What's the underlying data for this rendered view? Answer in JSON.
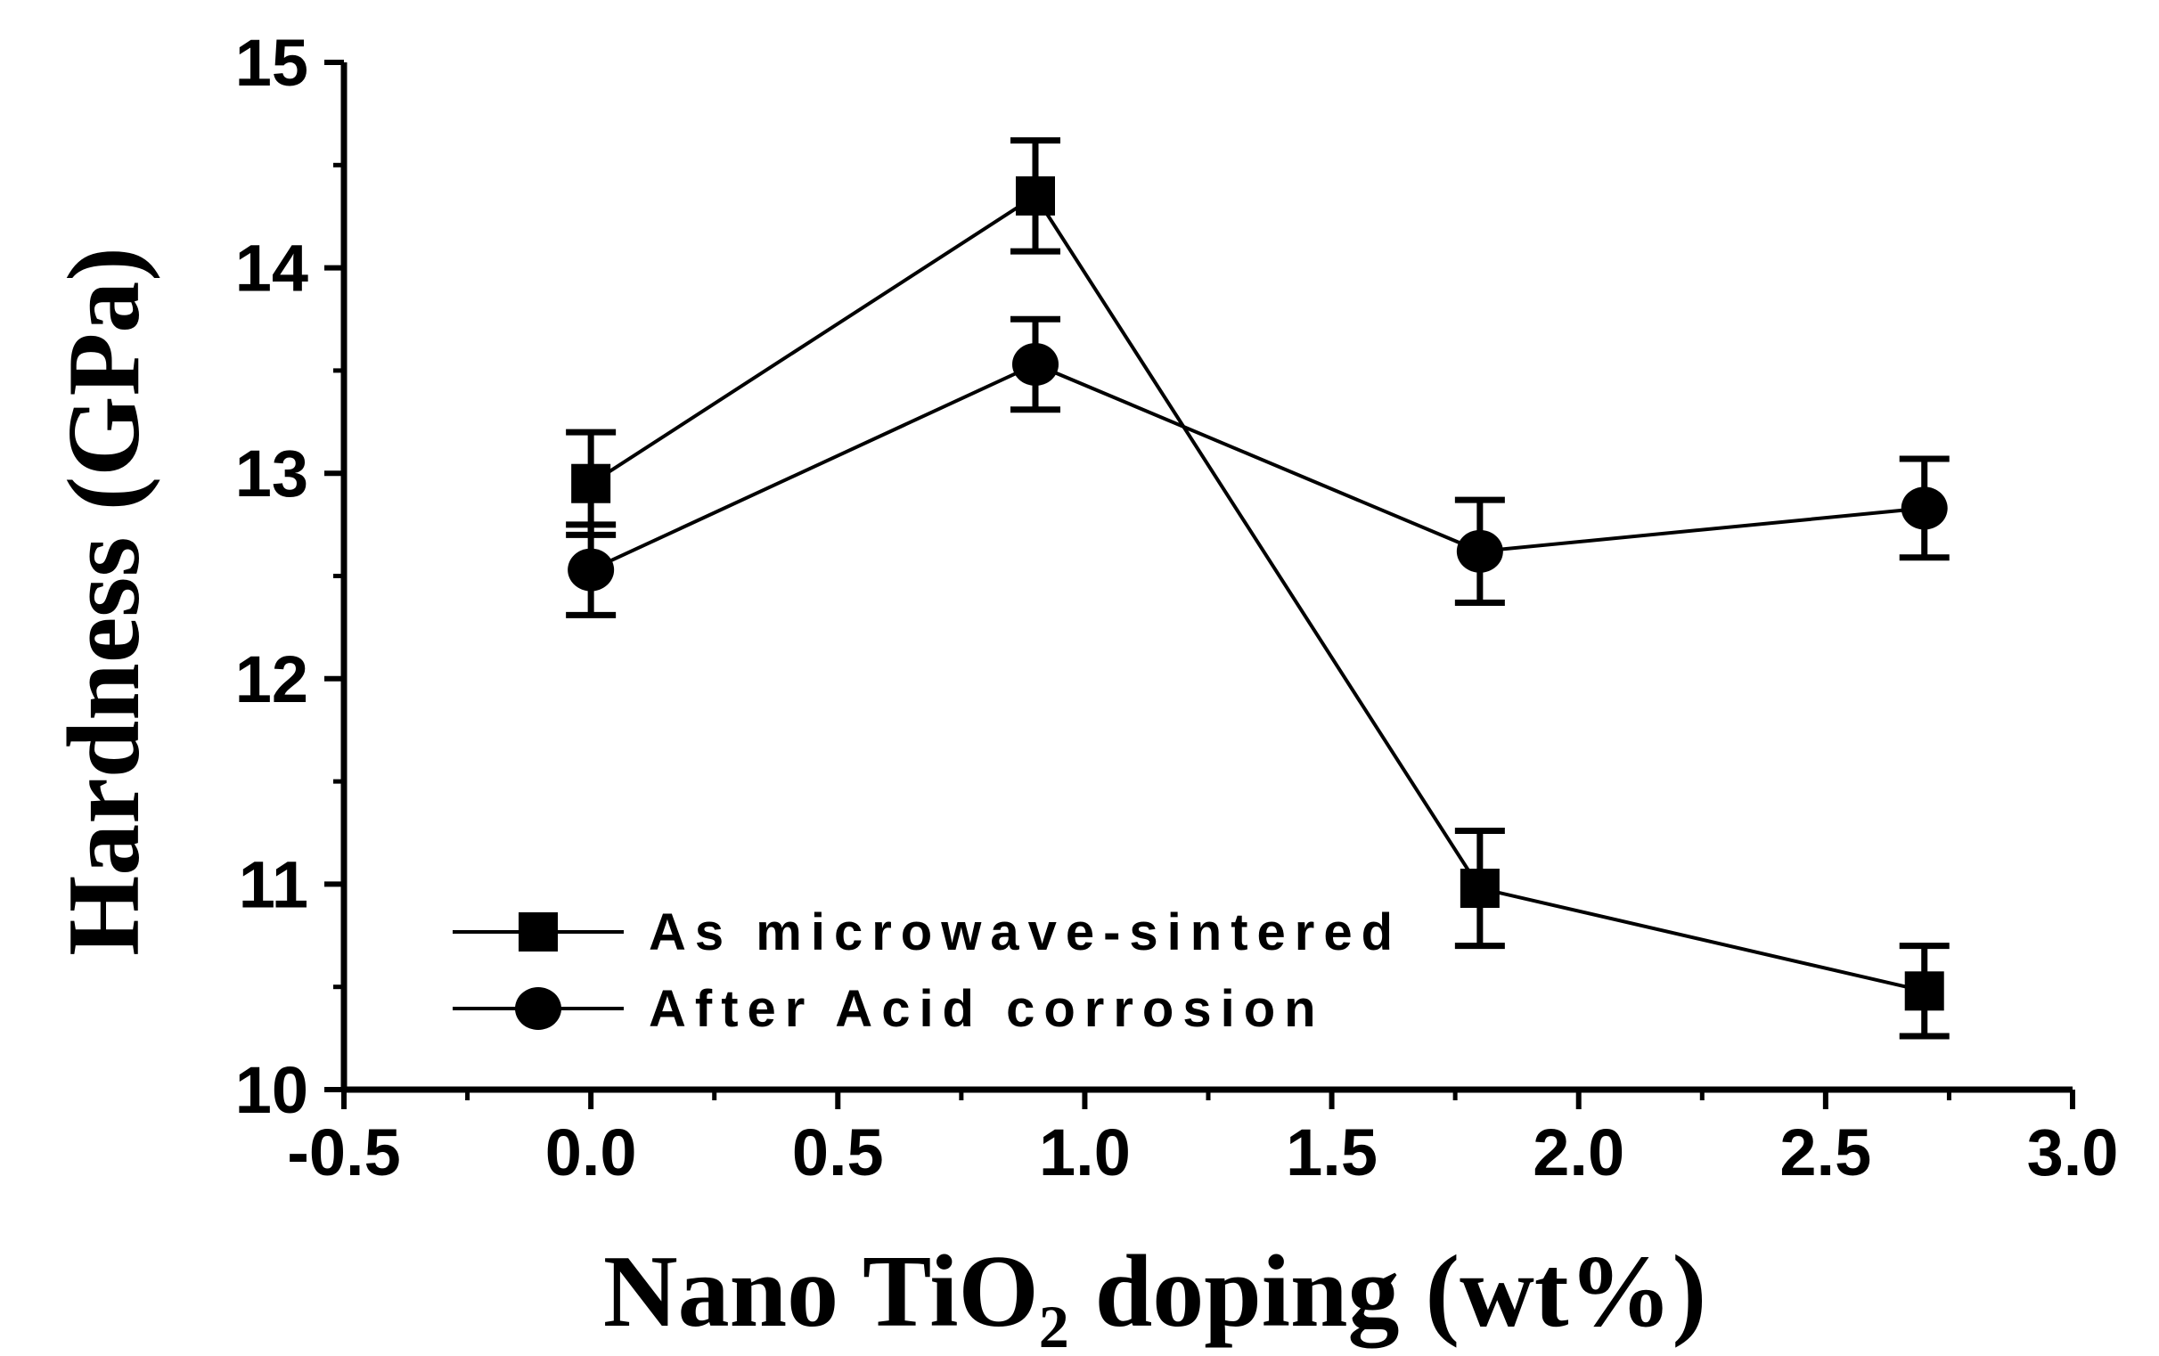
{
  "chart_data": {
    "type": "line",
    "xlabel": "Nano TiO2 doping (wt%)",
    "xlabel_parts": {
      "pre": "Nano TiO",
      "sub": "2",
      "post": " doping (wt%)"
    },
    "ylabel": "Hardness (GPa)",
    "xlim": [
      -0.5,
      3.0
    ],
    "ylim": [
      10,
      15
    ],
    "x_ticks": [
      -0.5,
      0.0,
      0.5,
      1.0,
      1.5,
      2.0,
      2.5,
      3.0
    ],
    "x_tick_labels": [
      "-0.5",
      "0.0",
      "0.5",
      "1.0",
      "1.5",
      "2.0",
      "2.5",
      "3.0"
    ],
    "y_ticks": [
      10,
      11,
      12,
      13,
      14,
      15
    ],
    "y_tick_labels": [
      "10",
      "11",
      "12",
      "13",
      "14",
      "15"
    ],
    "grid": false,
    "legend_position": "lower-left",
    "series": [
      {
        "name": "As microwave-sintered",
        "marker": "square",
        "color": "#000000",
        "x": [
          0.0,
          0.9,
          1.8,
          2.7
        ],
        "y": [
          12.95,
          14.35,
          10.98,
          10.48
        ],
        "err": [
          0.25,
          0.27,
          0.28,
          0.22
        ]
      },
      {
        "name": "After Acid corrosion",
        "marker": "circle",
        "color": "#000000",
        "x": [
          0.0,
          0.9,
          1.8,
          2.7
        ],
        "y": [
          12.53,
          13.53,
          12.62,
          12.83
        ],
        "err": [
          0.22,
          0.22,
          0.25,
          0.24
        ]
      }
    ]
  }
}
